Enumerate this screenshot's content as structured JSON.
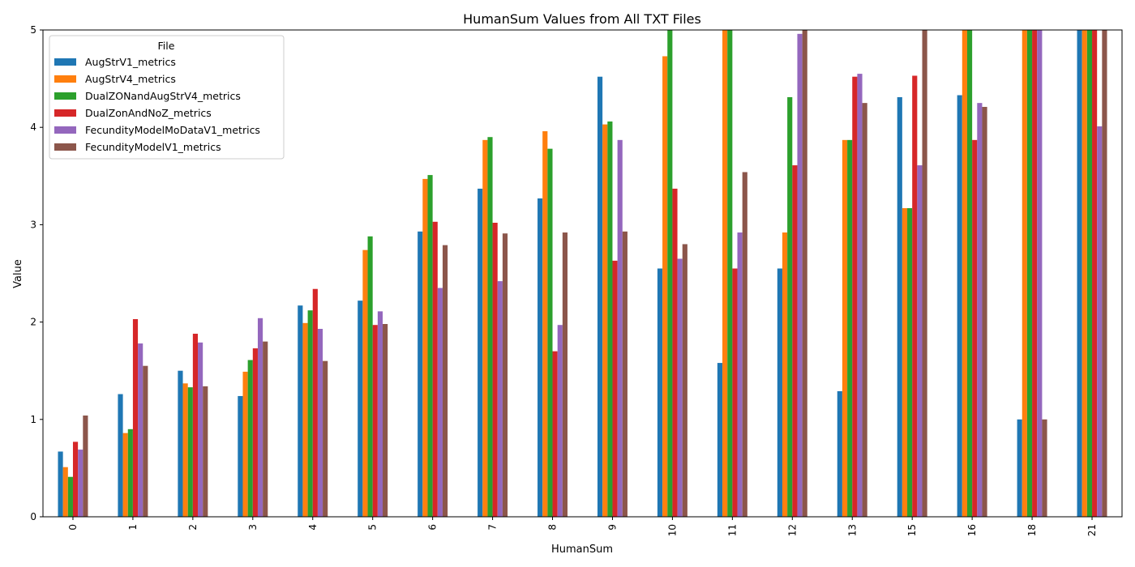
{
  "chart_data": {
    "type": "bar",
    "title": "HumanSum Values from All TXT Files",
    "xlabel": "HumanSum",
    "ylabel": "Value",
    "ylim": [
      0,
      5
    ],
    "yticks": [
      "0",
      "1",
      "2",
      "3",
      "4",
      "5"
    ],
    "legend_title": "File",
    "legend_position": "upper-left",
    "categories": [
      "0",
      "1",
      "2",
      "3",
      "4",
      "5",
      "6",
      "7",
      "8",
      "9",
      "10",
      "11",
      "12",
      "13",
      "15",
      "16",
      "18",
      "21"
    ],
    "series": [
      {
        "name": "AugStrV1_metrics",
        "color": "#1f77b4",
        "values": [
          0.67,
          1.26,
          1.5,
          1.24,
          2.17,
          2.22,
          2.93,
          3.37,
          3.27,
          4.52,
          2.55,
          1.58,
          2.55,
          1.29,
          4.31,
          4.33,
          1.0,
          5.0
        ]
      },
      {
        "name": "AugStrV4_metrics",
        "color": "#ff7f0e",
        "values": [
          0.51,
          0.86,
          1.37,
          1.49,
          1.99,
          2.74,
          3.47,
          3.87,
          3.96,
          4.03,
          4.73,
          5.0,
          2.92,
          3.87,
          3.17,
          5.0,
          5.0,
          5.0
        ]
      },
      {
        "name": "DualZONandAugStrV4_metrics",
        "color": "#2ca02c",
        "values": [
          0.41,
          0.9,
          1.33,
          1.61,
          2.12,
          2.88,
          3.51,
          3.9,
          3.78,
          4.06,
          5.0,
          5.0,
          4.31,
          3.87,
          3.17,
          5.0,
          5.0,
          5.0
        ]
      },
      {
        "name": "DualZonAndNoZ_metrics",
        "color": "#d62728",
        "values": [
          0.77,
          2.03,
          1.88,
          1.73,
          2.34,
          1.97,
          3.03,
          3.02,
          1.7,
          2.63,
          3.37,
          2.55,
          3.61,
          4.52,
          4.53,
          3.87,
          5.0,
          5.0
        ]
      },
      {
        "name": "FecundityModelMoDataV1_metrics",
        "color": "#9467bd",
        "values": [
          0.69,
          1.78,
          1.79,
          2.04,
          1.93,
          2.11,
          2.35,
          2.42,
          1.97,
          3.87,
          2.65,
          2.92,
          4.96,
          4.55,
          3.61,
          4.25,
          5.0,
          4.01
        ]
      },
      {
        "name": "FecundityModelV1_metrics",
        "color": "#8c564b",
        "values": [
          1.04,
          1.55,
          1.34,
          1.8,
          1.6,
          1.98,
          2.79,
          2.91,
          2.92,
          2.93,
          2.8,
          3.54,
          5.0,
          4.25,
          5.0,
          4.21,
          1.0,
          5.0
        ]
      }
    ]
  }
}
